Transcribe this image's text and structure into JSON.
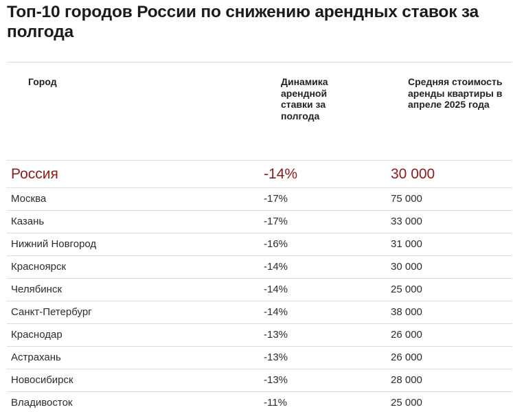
{
  "title": "Топ-10 городов России по снижению арендных ставок за полгода",
  "table": {
    "headers": {
      "city": "Город",
      "dynamics": "Динамика арендной ставки за полгода",
      "price": "Средняя стоимость аренды квартиры в апреле 2025 года"
    },
    "total": {
      "city": "Россия",
      "dynamics": "-14%",
      "price": "30 000"
    },
    "rows": [
      {
        "city": "Москва",
        "dynamics": "-17%",
        "price": "75 000"
      },
      {
        "city": "Казань",
        "dynamics": "-17%",
        "price": "33 000"
      },
      {
        "city": "Нижний Новгород",
        "dynamics": "-16%",
        "price": "31 000"
      },
      {
        "city": "Красноярск",
        "dynamics": "-14%",
        "price": "30 000"
      },
      {
        "city": "Челябинск",
        "dynamics": "-14%",
        "price": "25 000"
      },
      {
        "city": "Санкт-Петербург",
        "dynamics": "-14%",
        "price": "38 000"
      },
      {
        "city": "Краснодар",
        "dynamics": "-13%",
        "price": "26 000"
      },
      {
        "city": "Астрахань",
        "dynamics": "-13%",
        "price": "26 000"
      },
      {
        "city": "Новосибирск",
        "dynamics": "-13%",
        "price": "28 000"
      },
      {
        "city": "Владивосток",
        "dynamics": "-11%",
        "price": "25 000"
      }
    ]
  },
  "colors": {
    "text": "#222222",
    "highlight": "#8b1a1a",
    "divider": "#dcdcdc"
  }
}
